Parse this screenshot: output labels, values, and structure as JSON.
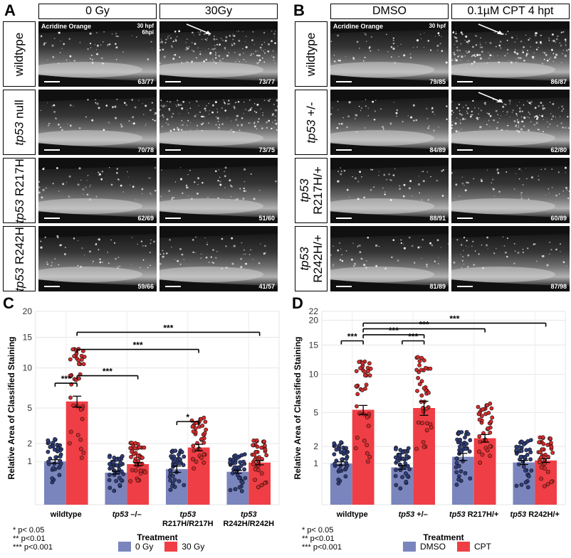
{
  "panels": {
    "A": {
      "letter": "A",
      "columns": [
        "0 Gy",
        "30Gy"
      ],
      "stain_label": "Acridine Orange",
      "time_label": [
        "30 hpf",
        "6hpi"
      ],
      "rows": [
        {
          "gene": "",
          "label": "wildtype",
          "counts": [
            "63/77",
            "73/77"
          ]
        },
        {
          "gene": "tp53",
          "label": "null",
          "counts": [
            "70/78",
            "73/75"
          ]
        },
        {
          "gene": "tp53",
          "label": "R217H",
          "counts": [
            "62/69",
            "51/60"
          ]
        },
        {
          "gene": "tp53",
          "label": "R242H",
          "counts": [
            "59/66",
            "41/57"
          ]
        }
      ]
    },
    "B": {
      "letter": "B",
      "columns": [
        "DMSO",
        "0.1µM CPT 4 hpt"
      ],
      "stain_label": "Acridine Orange",
      "time_label": [
        "30 hpf"
      ],
      "rows": [
        {
          "gene": "",
          "label": "wildtype",
          "counts": [
            "79/85",
            "86/87"
          ]
        },
        {
          "gene": "tp53",
          "label": "+/-",
          "counts": [
            "84/89",
            "62/80"
          ]
        },
        {
          "gene": "tp53",
          "label": "R217H/+",
          "counts": [
            "88/91",
            "60/89"
          ]
        },
        {
          "gene": "tp53",
          "label": "R242H/+",
          "counts": [
            "81/89",
            "87/98"
          ]
        }
      ]
    }
  },
  "chart_data": [
    {
      "panel": "C",
      "type": "bar",
      "categories": [
        "wildtype",
        "tp53 –/–",
        "tp53 R217H/R217H",
        "tp53 R242H/R242H"
      ],
      "category_lines": [
        [
          "wildtype"
        ],
        [
          "tp53 –/–"
        ],
        [
          "tp53",
          "R217H/R217H"
        ],
        [
          "tp53",
          "R242H/R242H"
        ]
      ],
      "series": [
        {
          "name": "0 Gy",
          "color": "#7b85bd",
          "values": [
            1.0,
            0.55,
            0.68,
            0.58
          ],
          "err": [
            0.08,
            0.05,
            0.12,
            0.05
          ]
        },
        {
          "name": "30 Gy",
          "color": "#ef3e45",
          "values": [
            5.7,
            0.88,
            1.75,
            0.95
          ],
          "err": [
            0.6,
            0.07,
            0.2,
            0.1
          ]
        }
      ],
      "xlabel": "Treatment",
      "ylabel": "Relative Area of Classified Staining",
      "scale": "sqrt",
      "ylim": [
        0,
        20
      ],
      "yticks": [
        1,
        2,
        5,
        10,
        15,
        20
      ],
      "significance": [
        {
          "from": [
            0,
            0
          ],
          "to": [
            0,
            1
          ],
          "y": 7.9,
          "label": "***"
        },
        {
          "from": [
            0,
            1
          ],
          "to": [
            1,
            1
          ],
          "y": 8.9,
          "label": "***"
        },
        {
          "from": [
            0,
            1
          ],
          "to": [
            2,
            1
          ],
          "y": 12.9,
          "label": "***"
        },
        {
          "from": [
            0,
            1
          ],
          "to": [
            3,
            1
          ],
          "y": 15.9,
          "label": "***"
        },
        {
          "from": [
            2,
            0
          ],
          "to": [
            2,
            1
          ],
          "y": 3.7,
          "label": "*"
        }
      ],
      "pvalue_legend": [
        "* p< 0.05",
        "** p<0.01",
        "*** p<0.001"
      ]
    },
    {
      "panel": "D",
      "type": "bar",
      "categories": [
        "wildtype",
        "tp53 +/–",
        "tp53 R217H/+",
        "tp53 R242H/+"
      ],
      "category_lines": [
        [
          "wildtype"
        ],
        [
          "tp53 +/–"
        ],
        [
          "tp53 R217H/+"
        ],
        [
          "tp53 R242H/+"
        ]
      ],
      "series": [
        {
          "name": "DMSO",
          "color": "#7b85bd",
          "values": [
            1.0,
            0.82,
            1.35,
            1.05
          ],
          "err": [
            0.08,
            0.08,
            0.2,
            0.1
          ]
        },
        {
          "name": "CPT",
          "color": "#ef3e45",
          "values": [
            5.3,
            5.5,
            2.6,
            1.15
          ],
          "err": [
            0.5,
            0.8,
            0.3,
            0.1
          ]
        }
      ],
      "xlabel": "Treatment",
      "ylabel": "Relative Area of Classified Staining",
      "scale": "sqrt",
      "ylim": [
        0,
        22
      ],
      "yticks": [
        1,
        2,
        5,
        10,
        15,
        20,
        22
      ],
      "significance": [
        {
          "from": [
            0,
            0
          ],
          "to": [
            0,
            1
          ],
          "y": 15.8,
          "label": "***"
        },
        {
          "from": [
            1,
            0
          ],
          "to": [
            1,
            1
          ],
          "y": 15.8,
          "label": "***"
        },
        {
          "from": [
            0,
            1
          ],
          "to": [
            1,
            1
          ],
          "y": 17.0,
          "label": "***"
        },
        {
          "from": [
            0,
            1
          ],
          "to": [
            2,
            1
          ],
          "y": 18.2,
          "label": "***"
        },
        {
          "from": [
            0,
            1
          ],
          "to": [
            3,
            1
          ],
          "y": 19.4,
          "label": "***"
        }
      ],
      "pvalue_legend": [
        "* p< 0.05",
        "** p<0.01",
        "*** p<0.001"
      ]
    }
  ]
}
